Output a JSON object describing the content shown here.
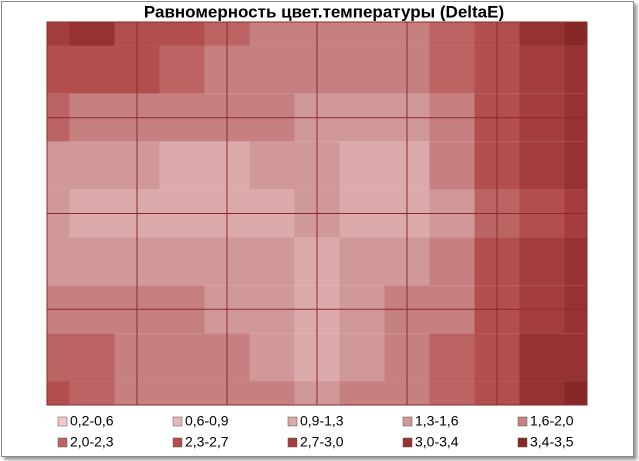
{
  "chart_data": {
    "type": "contour",
    "title": "Равномерность цвет.температуры (DeltaE)",
    "levels": [
      0.2,
      0.6,
      0.9,
      1.3,
      1.6,
      2.0,
      2.3,
      2.7,
      3.0,
      3.4,
      3.5
    ],
    "bands": [
      {
        "name": "0,2-0,6",
        "color": "#f2c8c8"
      },
      {
        "name": "0,6-0,9",
        "color": "#e8b8b8"
      },
      {
        "name": "0,9-1,3",
        "color": "#dcaaaa"
      },
      {
        "name": "1,3-1,6",
        "color": "#d09898"
      },
      {
        "name": "1,6-2,0",
        "color": "#c68080"
      },
      {
        "name": "2,0-2,3",
        "color": "#bc6464"
      },
      {
        "name": "2,3-2,7",
        "color": "#b24e4e"
      },
      {
        "name": "2,7-3,0",
        "color": "#a43e3e"
      },
      {
        "name": "3,0-3,4",
        "color": "#963232"
      },
      {
        "name": "3,4-3,5",
        "color": "#862828"
      }
    ],
    "z": [
      [
        2.9,
        3.0,
        2.6,
        2.3,
        2.1,
        1.9,
        1.8,
        1.8,
        1.9,
        2.2,
        2.6,
        3.0,
        3.4
      ],
      [
        2.6,
        2.5,
        2.3,
        2.1,
        1.9,
        1.8,
        1.7,
        1.7,
        1.8,
        2.1,
        2.5,
        2.9,
        3.2
      ],
      [
        2.0,
        1.9,
        1.8,
        1.7,
        1.6,
        1.6,
        1.5,
        1.5,
        1.5,
        1.9,
        2.4,
        2.8,
        3.1
      ],
      [
        1.5,
        1.4,
        1.3,
        1.2,
        1.2,
        1.3,
        1.3,
        1.2,
        1.1,
        1.6,
        2.3,
        2.7,
        3.0
      ],
      [
        1.3,
        1.2,
        1.1,
        1.0,
        0.9,
        1.1,
        1.4,
        1.1,
        0.9,
        1.4,
        2.2,
        2.6,
        2.9
      ],
      [
        1.5,
        1.4,
        1.4,
        1.3,
        1.3,
        1.3,
        1.1,
        1.3,
        1.4,
        1.7,
        2.3,
        2.7,
        3.0
      ],
      [
        1.9,
        1.8,
        1.7,
        1.6,
        1.5,
        1.4,
        1.0,
        1.4,
        1.6,
        1.9,
        2.4,
        2.9,
        3.2
      ],
      [
        2.2,
        2.0,
        1.8,
        1.7,
        1.6,
        1.5,
        1.2,
        1.5,
        1.7,
        2.0,
        2.5,
        3.0,
        3.3
      ],
      [
        2.4,
        2.2,
        1.9,
        1.8,
        1.7,
        1.6,
        1.5,
        1.7,
        1.9,
        2.1,
        2.6,
        3.1,
        3.4
      ]
    ]
  }
}
